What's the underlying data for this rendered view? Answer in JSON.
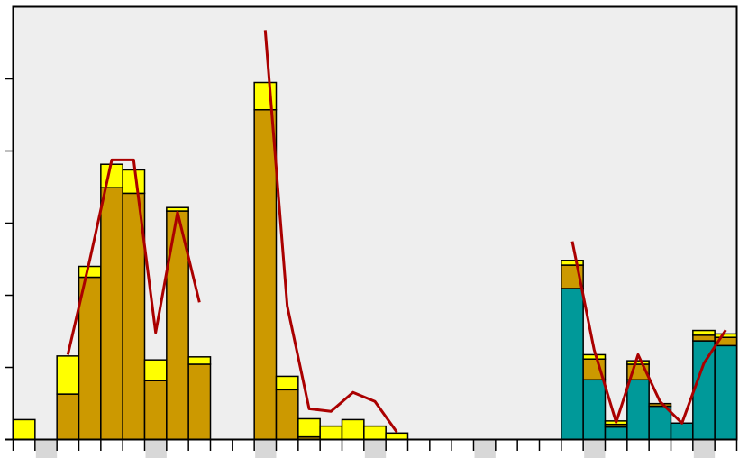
{
  "chart_data": {
    "type": "bar",
    "stacked": true,
    "grid": false,
    "legend": "none",
    "title": "",
    "xlabel": "",
    "ylabel": "",
    "ylim": [
      0,
      1
    ],
    "n_slots": 33,
    "tick_labels": [],
    "highlighted_slots": [
      1,
      6,
      11,
      16,
      21,
      26,
      31
    ],
    "colors": {
      "plot_bg": "#eeeeee",
      "highlight": "#d8d8d8",
      "base_gold": "#cc9900",
      "base_teal": "#009999",
      "mid_gold": "#cc9900",
      "top_yellow": "#ffff00",
      "line": "#aa0000",
      "outline": "#000000"
    },
    "series": [
      {
        "role": "base",
        "values": [
          0,
          0,
          0.105,
          0.375,
          0.582,
          0.569,
          0.136,
          0.528,
          0.174,
          0,
          0,
          0.762,
          0.115,
          0.006,
          0,
          0,
          0,
          0,
          0,
          0,
          0,
          0,
          0,
          0,
          0,
          0.349,
          0.138,
          0.029,
          0.138,
          0.077,
          0.038,
          0.228,
          0.217
        ]
      },
      {
        "role": "middle",
        "values": [
          0,
          0,
          0,
          0,
          0,
          0,
          0,
          0,
          0,
          0,
          0,
          0,
          0,
          0,
          0,
          0,
          0,
          0,
          0,
          0,
          0,
          0,
          0,
          0,
          0,
          0.054,
          0.048,
          0.006,
          0.036,
          0.006,
          0,
          0.013,
          0.019
        ]
      },
      {
        "role": "top",
        "values": [
          0.046,
          0,
          0.088,
          0.025,
          0.054,
          0.054,
          0.048,
          0.008,
          0.017,
          0,
          0,
          0.063,
          0.031,
          0.042,
          0.031,
          0.046,
          0.031,
          0.015,
          0,
          0,
          0,
          0,
          0,
          0,
          0,
          0.011,
          0.01,
          0.008,
          0.008,
          0,
          0,
          0.011,
          0.008
        ]
      }
    ],
    "line": [
      [
        2.5,
        0.196
      ],
      [
        3.5,
        0.416
      ],
      [
        4.5,
        0.646
      ],
      [
        5.5,
        0.646
      ],
      [
        6.5,
        0.247
      ],
      [
        7.5,
        0.525
      ],
      [
        8.5,
        0.317
      ],
      [
        11.5,
        0.946
      ],
      [
        12.5,
        0.309
      ],
      [
        13.5,
        0.071
      ],
      [
        14.5,
        0.065
      ],
      [
        15.5,
        0.109
      ],
      [
        16.5,
        0.088
      ],
      [
        17.5,
        0.017
      ],
      [
        25.5,
        0.458
      ],
      [
        26.5,
        0.207
      ],
      [
        27.5,
        0.04
      ],
      [
        28.5,
        0.196
      ],
      [
        29.5,
        0.088
      ],
      [
        30.5,
        0.038
      ],
      [
        31.5,
        0.176
      ],
      [
        32.5,
        0.253
      ]
    ]
  }
}
